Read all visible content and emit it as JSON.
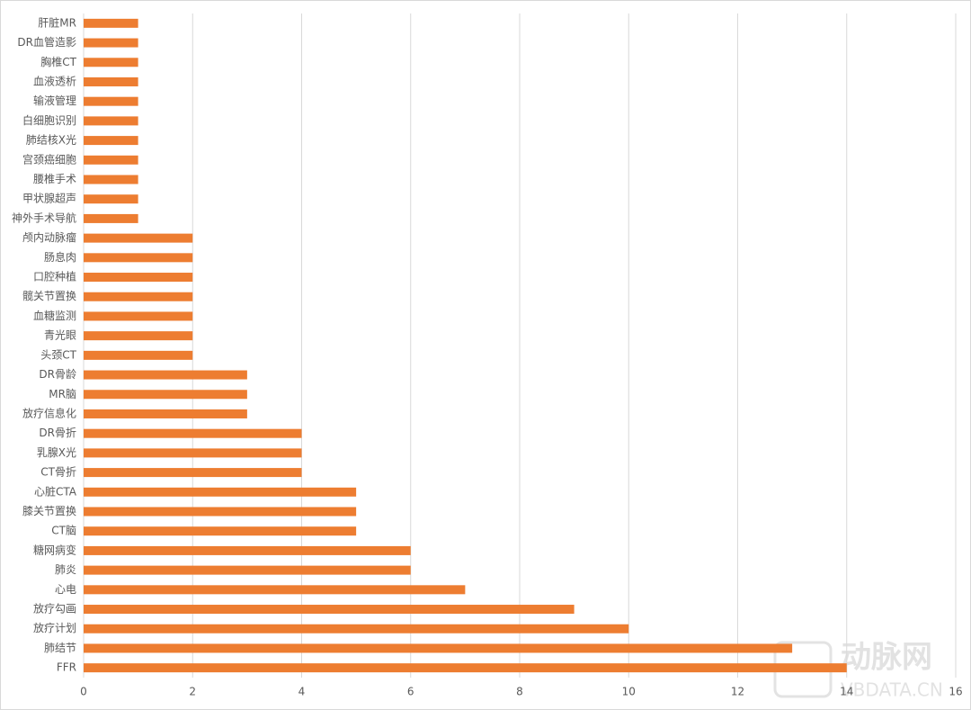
{
  "chart_data": {
    "type": "barh",
    "categories": [
      "肝脏MR",
      "DR血管造影",
      "胸椎CT",
      "血液透析",
      "输液管理",
      "白细胞识别",
      "肺结核X光",
      "宫颈癌细胞",
      "腰椎手术",
      "甲状腺超声",
      "神外手术导航",
      "颅内动脉瘤",
      "肠息肉",
      "口腔种植",
      "髋关节置换",
      "血糖监测",
      "青光眼",
      "头颈CT",
      "DR骨龄",
      "MR脑",
      "放疗信息化",
      "DR骨折",
      "乳腺X光",
      "CT骨折",
      "心脏CTA",
      "膝关节置换",
      "CT脑",
      "糖网病变",
      "肺炎",
      "心电",
      "放疗勾画",
      "放疗计划",
      "肺结节",
      "FFR"
    ],
    "values": [
      1,
      1,
      1,
      1,
      1,
      1,
      1,
      1,
      1,
      1,
      1,
      2,
      2,
      2,
      2,
      2,
      2,
      2,
      3,
      3,
      3,
      4,
      4,
      4,
      5,
      5,
      5,
      6,
      6,
      7,
      9,
      10,
      13,
      14
    ],
    "color": "#ed7d31",
    "xlim": [
      0,
      16
    ],
    "xticks": [
      0,
      2,
      4,
      6,
      8,
      10,
      12,
      14,
      16
    ],
    "grid": true
  },
  "watermark": {
    "name": "动脉网",
    "site": "VBDATA.CN"
  }
}
